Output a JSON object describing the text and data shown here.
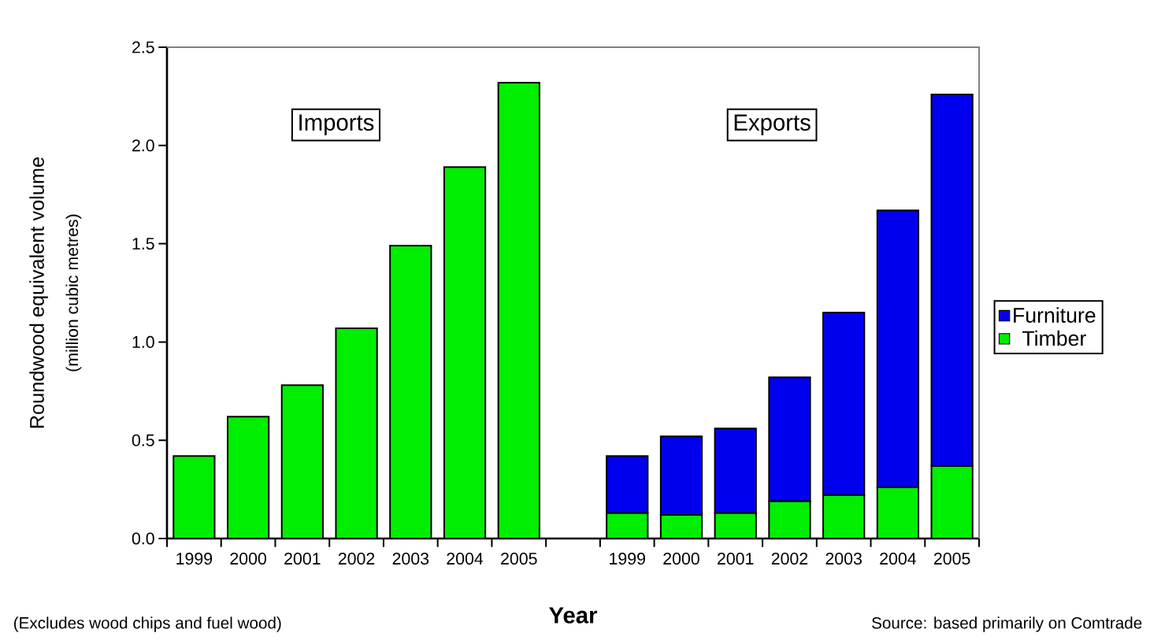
{
  "chart_data": {
    "type": "bar",
    "stacked": true,
    "categories": [
      "1999",
      "2000",
      "2001",
      "2002",
      "2003",
      "2004",
      "2005",
      null,
      "1999",
      "2000",
      "2001",
      "2002",
      "2003",
      "2004",
      "2005"
    ],
    "series": [
      {
        "name": "Timber",
        "color": "#00ee00",
        "values": [
          0.42,
          0.62,
          0.78,
          1.07,
          1.49,
          1.89,
          2.32,
          null,
          0.13,
          0.12,
          0.13,
          0.19,
          0.22,
          0.26,
          0.37
        ]
      },
      {
        "name": "Furniture",
        "color": "#0000ee",
        "values": [
          null,
          null,
          null,
          null,
          null,
          null,
          null,
          null,
          0.29,
          0.4,
          0.43,
          0.63,
          0.93,
          1.41,
          1.89
        ]
      }
    ],
    "xlabel": "Year",
    "ylabel": "Roundwood equivalent volume",
    "ylim": [
      0,
      2.5
    ],
    "yticks": [
      {
        "value": 0,
        "label": "0.0"
      },
      {
        "value": 0.5,
        "label": "0.5"
      },
      {
        "value": 1,
        "label": "1.0"
      },
      {
        "value": 1.5,
        "label": "1.5"
      },
      {
        "value": 2,
        "label": "2.0"
      },
      {
        "value": 2.5,
        "label": "2.5"
      }
    ],
    "legend": "right",
    "annotations": [
      "Imports",
      "Exports",
      "(million cubic metres)",
      "(Excludes wood chips and fuel wood)",
      "Source: based primarily on Comtrade"
    ]
  }
}
